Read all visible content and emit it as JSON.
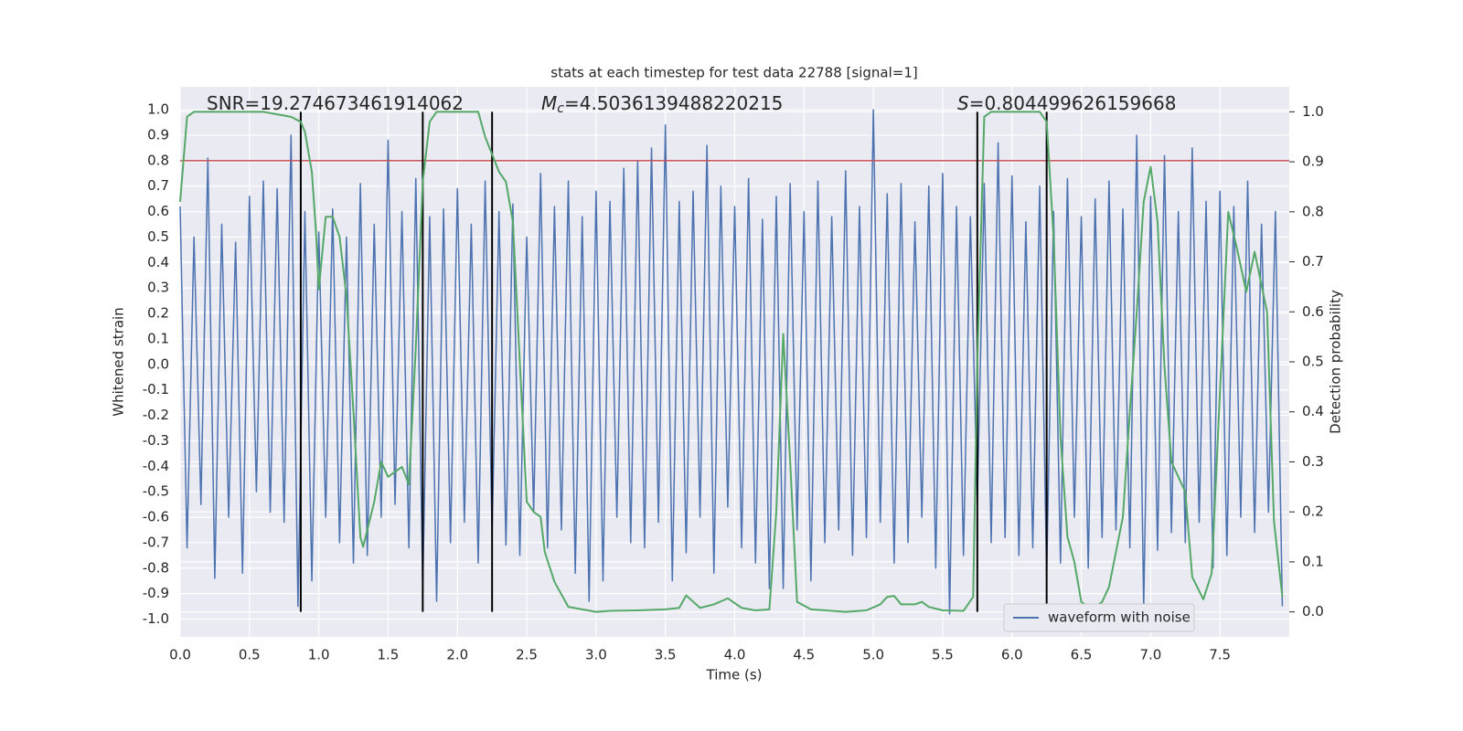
{
  "chart_data": {
    "type": "line",
    "title": "stats at each timestep for test data 22788 [signal=1]",
    "xlabel": "Time (s)",
    "ylabel": "Whitened strain",
    "y2label": "Detection probability",
    "annotations": [
      {
        "text": "SNR=19.274673461914062"
      },
      {
        "symbol": "M",
        "sub": "c",
        "text": "=4.5036139488220215"
      },
      {
        "symbol": "S",
        "text": "=0.804499626159668"
      }
    ],
    "xlim": [
      0,
      8
    ],
    "ylim": [
      -1.07,
      1.09
    ],
    "y2lim": [
      -0.05,
      1.05
    ],
    "xticks": [
      {
        "value": 0,
        "label": "0.0"
      },
      0.5,
      {
        "value": 1,
        "label": "1.0"
      },
      1.5,
      {
        "value": 2,
        "label": "2.0"
      },
      2.5,
      {
        "value": 3,
        "label": "3.0"
      },
      3.5,
      {
        "value": 4,
        "label": "4.0"
      },
      4.5,
      {
        "value": 5,
        "label": "5.0"
      },
      5.5,
      {
        "value": 6,
        "label": "6.0"
      },
      6.5,
      {
        "value": 7,
        "label": "7.0"
      },
      7.5
    ],
    "yticks": [
      {
        "value": -1,
        "label": "-1.0"
      },
      -0.9,
      -0.8,
      -0.7,
      -0.6,
      -0.5,
      -0.4,
      -0.3,
      -0.2,
      -0.1,
      {
        "value": 0,
        "label": "0.0"
      },
      0.1,
      0.2,
      0.3,
      0.4,
      0.5,
      0.6,
      0.7,
      0.8,
      0.9,
      {
        "value": 1,
        "label": "1.0"
      }
    ],
    "y2ticks": [
      {
        "value": 0,
        "label": "0.0"
      },
      0.1,
      0.2,
      0.3,
      0.4,
      0.5,
      0.6,
      0.7,
      0.8,
      0.9,
      {
        "value": 1,
        "label": "1.0"
      }
    ],
    "grid": true,
    "legend": "lower right",
    "series": [
      {
        "name": "waveform with noise",
        "color": "#4c72b0",
        "x": [
          0,
          0.05,
          0.1,
          0.15,
          0.2,
          0.25,
          0.3,
          0.35,
          0.4,
          0.45,
          0.5,
          0.55,
          0.6,
          0.65,
          0.7,
          0.75,
          0.8,
          0.85,
          0.9,
          0.95,
          1,
          1.05,
          1.1,
          1.15,
          1.2,
          1.25,
          1.3,
          1.35,
          1.4,
          1.45,
          1.5,
          1.55,
          1.6,
          1.65,
          1.7,
          1.75,
          1.8,
          1.85,
          1.9,
          1.95,
          2,
          2.05,
          2.1,
          2.15,
          2.2,
          2.25,
          2.3,
          2.35,
          2.4,
          2.45,
          2.5,
          2.55,
          2.6,
          2.65,
          2.7,
          2.75,
          2.8,
          2.85,
          2.9,
          2.95,
          3,
          3.05,
          3.1,
          3.15,
          3.2,
          3.25,
          3.3,
          3.35,
          3.4,
          3.45,
          3.5,
          3.55,
          3.6,
          3.65,
          3.7,
          3.75,
          3.8,
          3.85,
          3.9,
          3.95,
          4,
          4.05,
          4.1,
          4.15,
          4.2,
          4.25,
          4.3,
          4.35,
          4.4,
          4.45,
          4.5,
          4.55,
          4.6,
          4.65,
          4.7,
          4.75,
          4.8,
          4.85,
          4.9,
          4.95,
          5,
          5.05,
          5.1,
          5.15,
          5.2,
          5.25,
          5.3,
          5.35,
          5.4,
          5.45,
          5.5,
          5.55,
          5.6,
          5.65,
          5.7,
          5.75,
          5.8,
          5.85,
          5.9,
          5.95,
          6,
          6.05,
          6.1,
          6.15,
          6.2,
          6.25,
          6.3,
          6.35,
          6.4,
          6.45,
          6.5,
          6.55,
          6.6,
          6.65,
          6.7,
          6.75,
          6.8,
          6.85,
          6.9,
          6.95,
          7,
          7.05,
          7.1,
          7.15,
          7.2,
          7.25,
          7.3,
          7.35,
          7.4,
          7.45,
          7.5,
          7.55,
          7.6,
          7.65,
          7.7,
          7.75,
          7.8,
          7.85,
          7.9,
          7.95
        ],
        "values": [
          0.62,
          -0.72,
          0.5,
          -0.55,
          0.81,
          -0.84,
          0.55,
          -0.6,
          0.48,
          -0.82,
          0.66,
          -0.5,
          0.72,
          -0.58,
          0.69,
          -0.62,
          0.9,
          -0.95,
          0.6,
          -0.85,
          0.52,
          -0.6,
          0.61,
          -0.7,
          0.5,
          -0.78,
          0.71,
          -0.75,
          0.55,
          -0.6,
          0.88,
          -0.55,
          0.6,
          -0.72,
          0.73,
          -0.88,
          0.58,
          -0.93,
          0.61,
          -0.7,
          0.69,
          -0.62,
          0.55,
          -0.78,
          0.72,
          -0.66,
          0.6,
          -0.71,
          0.63,
          -0.75,
          0.5,
          -0.58,
          0.75,
          -0.72,
          0.62,
          -0.65,
          0.72,
          -0.82,
          0.58,
          -0.93,
          0.68,
          -0.85,
          0.64,
          -0.6,
          0.77,
          -0.7,
          0.8,
          -0.72,
          0.85,
          -0.62,
          0.94,
          -0.85,
          0.64,
          -0.74,
          0.68,
          -0.6,
          0.86,
          -0.82,
          0.7,
          -0.56,
          0.62,
          -0.72,
          0.73,
          -0.78,
          0.57,
          -0.88,
          0.66,
          -0.88,
          0.71,
          -0.65,
          0.6,
          -0.85,
          0.72,
          -0.7,
          0.58,
          -0.65,
          0.76,
          -0.75,
          0.62,
          -0.68,
          1.0,
          -0.62,
          0.67,
          -0.78,
          0.71,
          -0.7,
          0.56,
          -0.6,
          0.7,
          -0.8,
          0.75,
          -0.98,
          0.62,
          -0.75,
          0.58,
          -0.55,
          0.71,
          -0.7,
          0.87,
          -0.68,
          0.74,
          -0.75,
          0.56,
          -0.72,
          0.7,
          -0.83,
          0.6,
          -0.78,
          0.73,
          -0.6,
          0.58,
          -0.8,
          0.65,
          -0.68,
          0.72,
          -0.65,
          0.61,
          -0.72,
          0.9,
          -0.95,
          0.66,
          -0.73,
          0.82,
          -0.66,
          0.6,
          -0.7,
          0.85,
          -0.62,
          0.64,
          -0.8,
          0.68,
          -0.75,
          0.62,
          -0.6,
          0.72,
          -0.66,
          0.55,
          -0.58,
          0.6,
          -0.95
        ]
      },
      {
        "color": "#55a868",
        "axis": "y2",
        "x": [
          0,
          0.05,
          0.1,
          0.3,
          0.6,
          0.7,
          0.8,
          0.87,
          0.9,
          0.95,
          0.98,
          1.0,
          1.05,
          1.1,
          1.15,
          1.2,
          1.25,
          1.3,
          1.32,
          1.4,
          1.45,
          1.5,
          1.6,
          1.65,
          1.7,
          1.75,
          1.8,
          1.85,
          2.15,
          2.2,
          2.3,
          2.35,
          2.4,
          2.45,
          2.5,
          2.55,
          2.6,
          2.63,
          2.7,
          2.8,
          2.9,
          3.0,
          3.1,
          3.3,
          3.5,
          3.6,
          3.65,
          3.75,
          3.85,
          3.95,
          4.05,
          4.15,
          4.25,
          4.3,
          4.35,
          4.4,
          4.45,
          4.55,
          4.8,
          4.95,
          5.05,
          5.1,
          5.15,
          5.2,
          5.3,
          5.35,
          5.4,
          5.5,
          5.65,
          5.72,
          5.75,
          5.8,
          5.85,
          6.2,
          6.25,
          6.3,
          6.35,
          6.4,
          6.45,
          6.5,
          6.55,
          6.6,
          6.65,
          6.7,
          6.8,
          6.85,
          6.9,
          6.95,
          7.0,
          7.05,
          7.1,
          7.15,
          7.25,
          7.3,
          7.38,
          7.44,
          7.56,
          7.62,
          7.69,
          7.75,
          7.84,
          7.89,
          7.95
        ],
        "values": [
          0.82,
          0.99,
          1.0,
          1.0,
          1.0,
          0.995,
          0.99,
          0.98,
          0.96,
          0.88,
          0.76,
          0.645,
          0.79,
          0.79,
          0.75,
          0.63,
          0.4,
          0.15,
          0.13,
          0.22,
          0.3,
          0.27,
          0.29,
          0.255,
          0.53,
          0.86,
          0.98,
          1.0,
          1.0,
          0.95,
          0.88,
          0.86,
          0.78,
          0.5,
          0.22,
          0.2,
          0.19,
          0.12,
          0.06,
          0.01,
          0.005,
          0.0,
          0.002,
          0.003,
          0.005,
          0.008,
          0.033,
          0.008,
          0.015,
          0.027,
          0.008,
          0.003,
          0.005,
          0.2,
          0.556,
          0.3,
          0.02,
          0.005,
          0.0,
          0.003,
          0.015,
          0.03,
          0.032,
          0.015,
          0.015,
          0.02,
          0.01,
          0.003,
          0.002,
          0.03,
          0.5,
          0.99,
          1.0,
          1.0,
          0.98,
          0.75,
          0.35,
          0.15,
          0.1,
          0.02,
          0.01,
          0.01,
          0.02,
          0.05,
          0.19,
          0.4,
          0.6,
          0.82,
          0.89,
          0.78,
          0.49,
          0.3,
          0.24,
          0.07,
          0.025,
          0.077,
          0.8,
          0.73,
          0.64,
          0.72,
          0.6,
          0.18,
          0.03
        ]
      }
    ],
    "hline": {
      "y": 0.8,
      "color": "#c44e52"
    },
    "vlines": {
      "x": [
        0.87,
        1.75,
        2.25,
        5.75,
        6.25
      ],
      "ymin": 0,
      "ymax": 1,
      "axis": "y2",
      "color": "#000000"
    }
  }
}
